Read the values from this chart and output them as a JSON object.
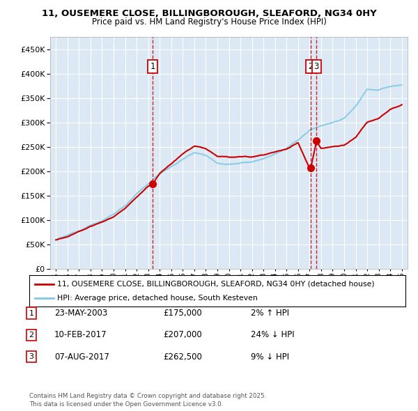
{
  "title": "11, OUSEMERE CLOSE, BILLINGBOROUGH, SLEAFORD, NG34 0HY",
  "subtitle": "Price paid vs. HM Land Registry's House Price Index (HPI)",
  "legend_line1": "11, OUSEMERE CLOSE, BILLINGBOROUGH, SLEAFORD, NG34 0HY (detached house)",
  "legend_line2": "HPI: Average price, detached house, South Kesteven",
  "footnote": "Contains HM Land Registry data © Crown copyright and database right 2025.\nThis data is licensed under the Open Government Licence v3.0.",
  "sales": [
    {
      "num": 1,
      "date": "23-MAY-2003",
      "price": 175000,
      "pct": "2%",
      "dir": "↑",
      "x": 2003.39
    },
    {
      "num": 2,
      "date": "10-FEB-2017",
      "price": 207000,
      "pct": "24%",
      "dir": "↓",
      "x": 2017.11
    },
    {
      "num": 3,
      "date": "07-AUG-2017",
      "price": 262500,
      "pct": "9%",
      "dir": "↓",
      "x": 2017.6
    }
  ],
  "ylim": [
    0,
    475000
  ],
  "yticks": [
    0,
    50000,
    100000,
    150000,
    200000,
    250000,
    300000,
    350000,
    400000,
    450000
  ],
  "xlim": [
    1994.5,
    2025.5
  ],
  "bg_color": "#dce9f5",
  "grid_color": "#ffffff",
  "red_color": "#cc0000",
  "blue_color": "#7ec8e3"
}
